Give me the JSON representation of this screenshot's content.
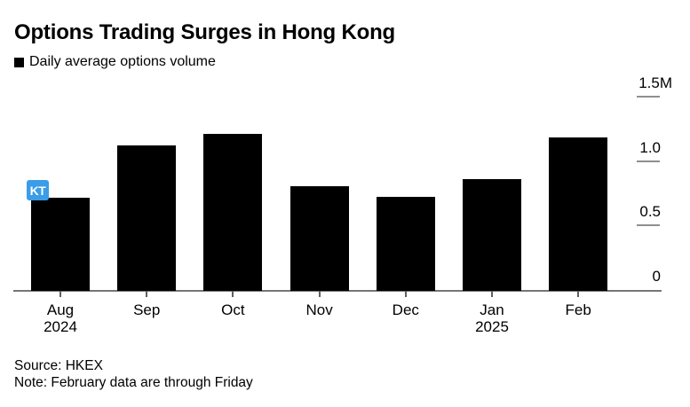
{
  "title": "Options Trading Surges in Hong Kong",
  "legend": {
    "label": "Daily average options volume",
    "swatch_color": "#000000"
  },
  "badge": {
    "text": "KT",
    "color": "#3b9ce8"
  },
  "chart_data": {
    "type": "bar",
    "title": "Options Trading Surges in Hong Kong",
    "series_name": "Daily average options volume",
    "categories": [
      "Aug 2024",
      "Sep",
      "Oct",
      "Nov",
      "Dec",
      "Jan 2025",
      "Feb"
    ],
    "values": [
      0.72,
      1.13,
      1.22,
      0.81,
      0.73,
      0.87,
      1.19
    ],
    "unit": "M",
    "ylim": [
      0,
      1.5
    ],
    "y_ticks": [
      0,
      0.5,
      1.0,
      1.5
    ],
    "y_tick_labels": [
      "0",
      "0.5",
      "1.0",
      "1.5M"
    ],
    "axis_side": "right",
    "grid": false,
    "bar_color": "#000000"
  },
  "footer": {
    "source": "Source: HKEX",
    "note": "Note: February data are through Friday"
  }
}
